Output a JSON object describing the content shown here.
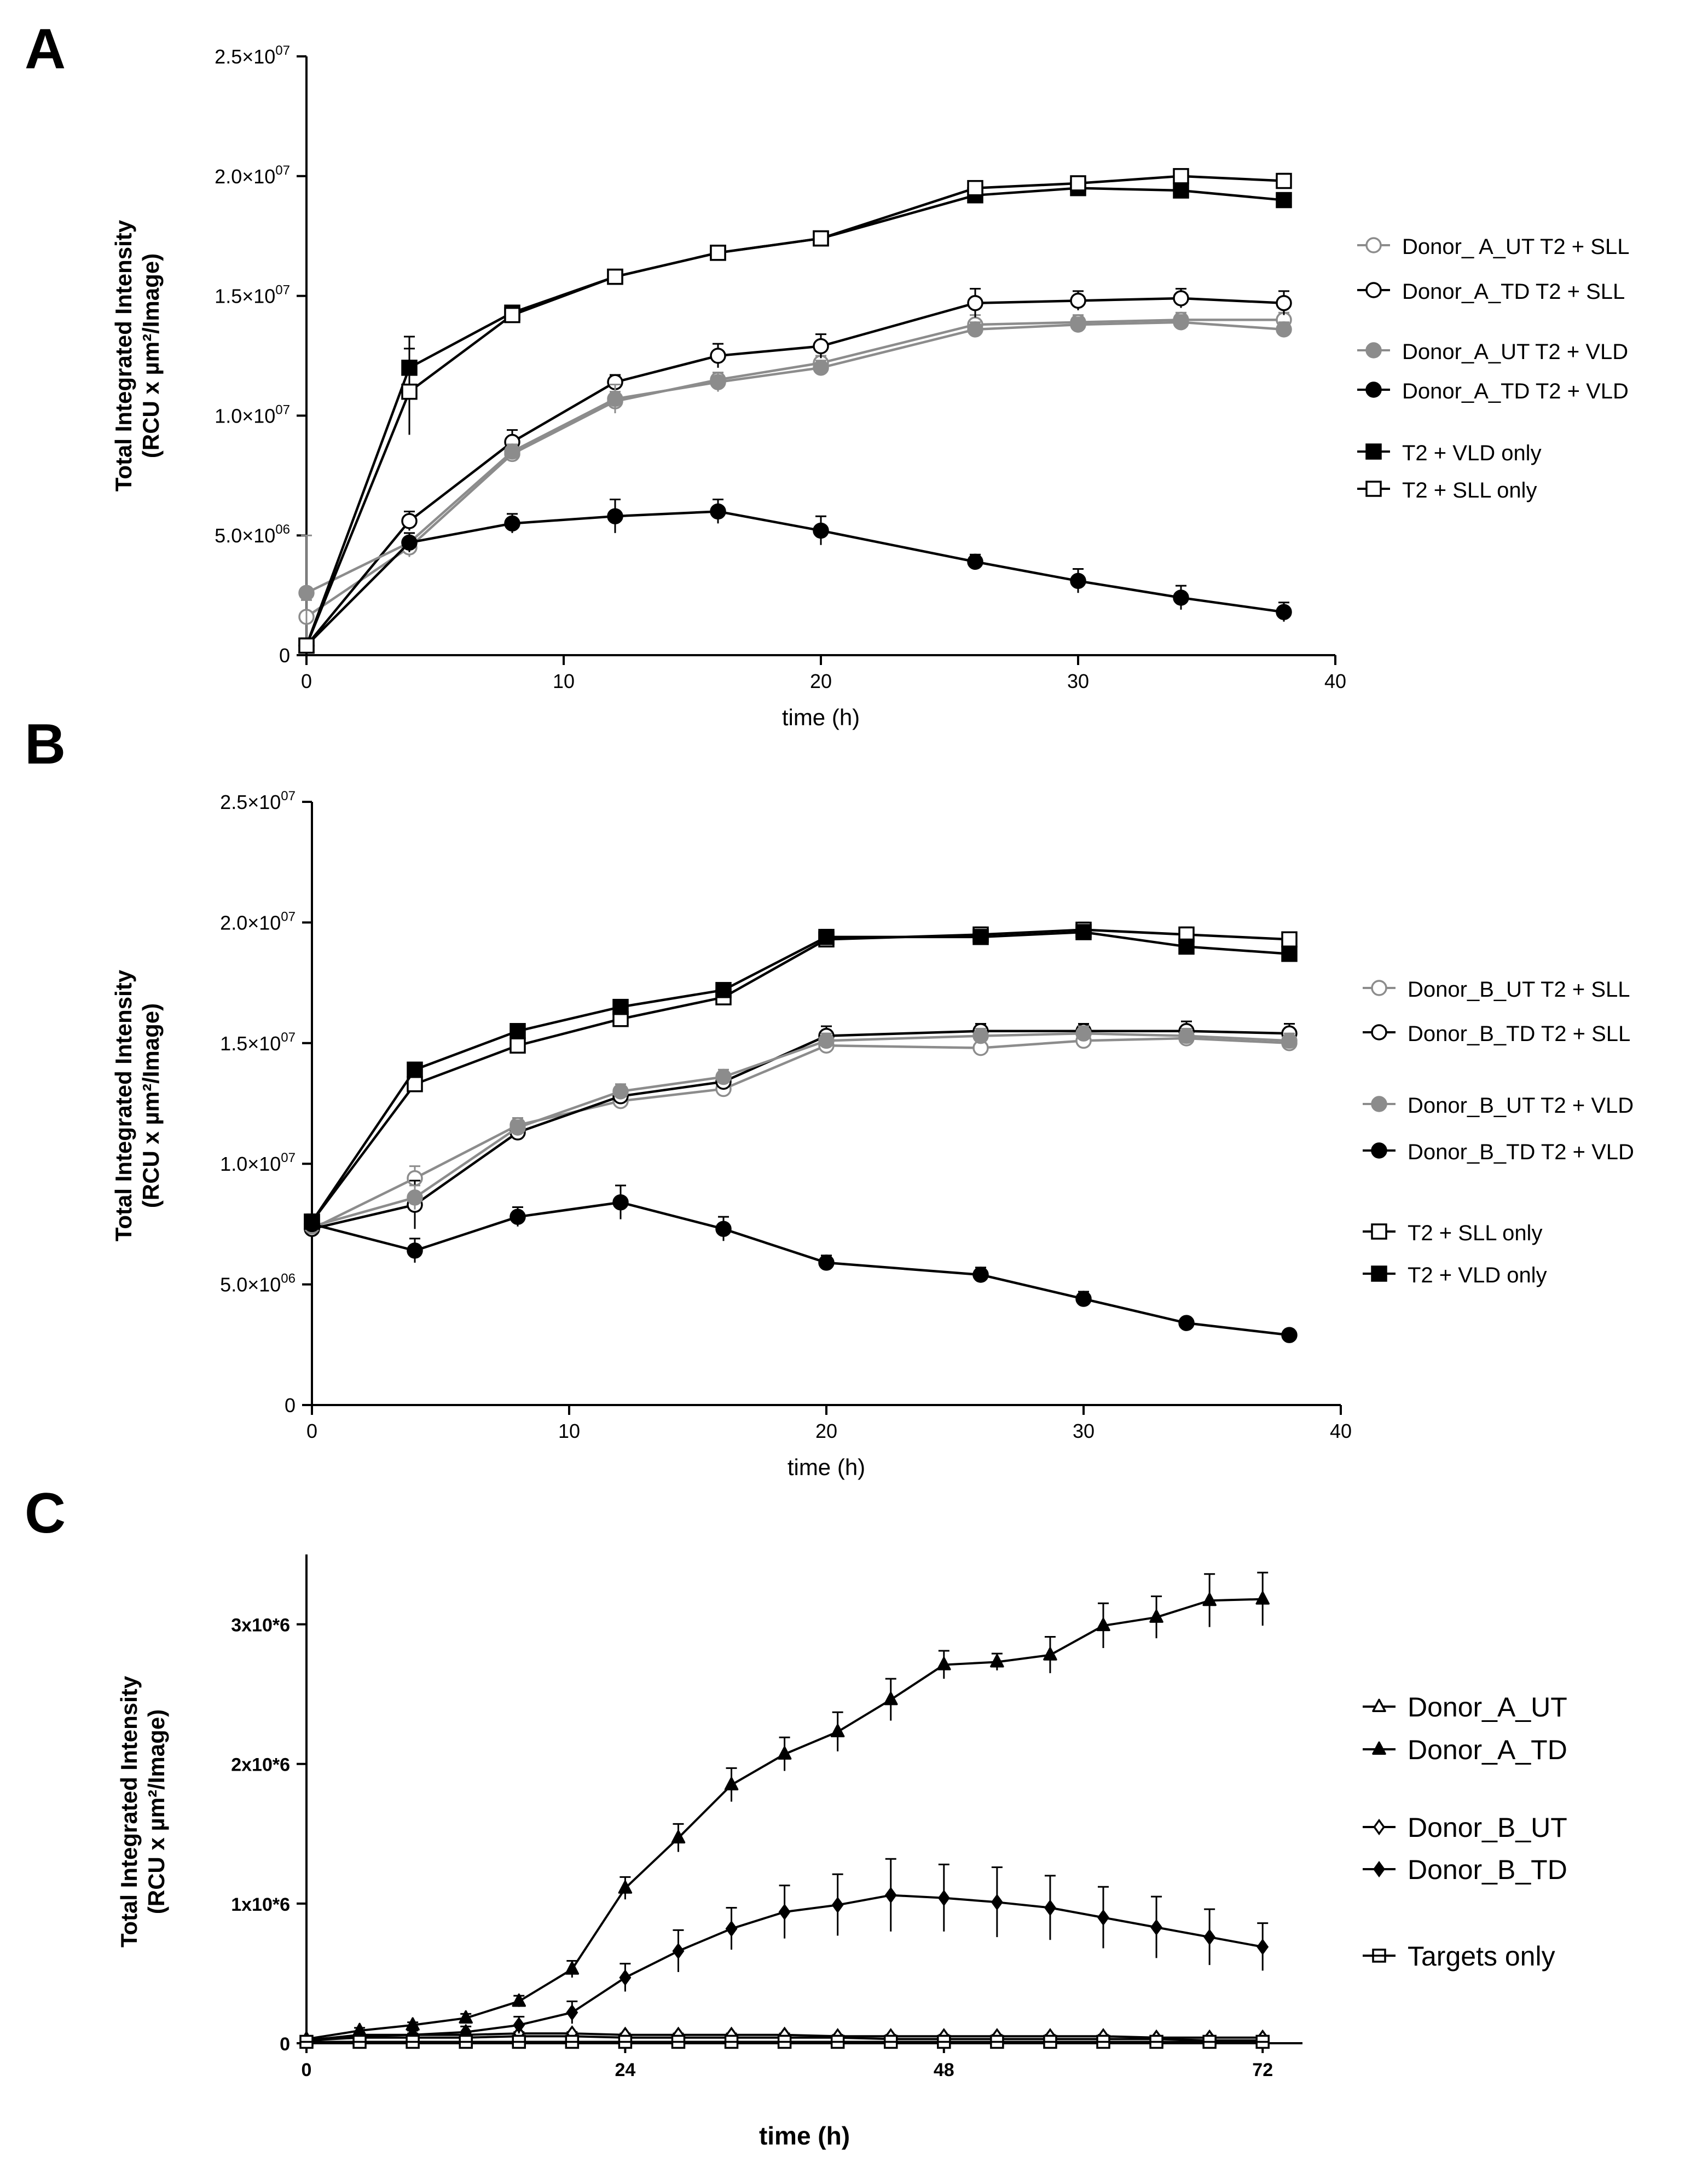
{
  "panels": [
    "A",
    "B",
    "C"
  ],
  "chart_data": [
    {
      "panel": "A",
      "type": "line",
      "xlabel": "time (h)",
      "ylabel_line1": "Total Integrated Intensity",
      "ylabel_line2": "(RCU x µm²/Image)",
      "xlim": [
        0,
        40
      ],
      "ylim": [
        0,
        25000000
      ],
      "xticks": [
        0,
        10,
        20,
        30,
        40
      ],
      "yticks": [
        0,
        5000000,
        10000000,
        15000000,
        20000000,
        25000000
      ],
      "ytick_labels": [
        {
          "mant": "0",
          "exp": ""
        },
        {
          "mant": "5.0×10",
          "exp": "06"
        },
        {
          "mant": "1.0×10",
          "exp": "07"
        },
        {
          "mant": "1.5×10",
          "exp": "07"
        },
        {
          "mant": "2.0×10",
          "exp": "07"
        },
        {
          "mant": "2.5×10",
          "exp": "07"
        }
      ],
      "grid": false,
      "legend_position": "right",
      "x": [
        0,
        4,
        8,
        12,
        16,
        20,
        26,
        30,
        34,
        38
      ],
      "series": [
        {
          "name": "Donor_ A_UT T2 + SLL",
          "marker": "circle",
          "fill": "open",
          "color": "#8c8c8c",
          "values": [
            1600000,
            4500000,
            8400000,
            10600000,
            11500000,
            12200000,
            13800000,
            13900000,
            14000000,
            14000000
          ],
          "errors": [
            700000,
            400000,
            300000,
            400000,
            300000,
            300000,
            400000,
            300000,
            300000,
            300000
          ]
        },
        {
          "name": "Donor_A_TD T2 + SLL",
          "marker": "circle",
          "fill": "open",
          "color": "#000000",
          "values": [
            400000,
            5600000,
            8900000,
            11400000,
            12500000,
            12900000,
            14700000,
            14800000,
            14900000,
            14700000
          ],
          "errors": [
            300000,
            400000,
            500000,
            300000,
            500000,
            500000,
            600000,
            400000,
            400000,
            500000
          ]
        },
        {
          "name": "Donor_A_UT T2 + VLD",
          "marker": "circle",
          "fill": "filled",
          "color": "#8c8c8c",
          "values": [
            2600000,
            4700000,
            8500000,
            10700000,
            11400000,
            12000000,
            13600000,
            13800000,
            13900000,
            13600000
          ],
          "errors": [
            2400000,
            400000,
            300000,
            600000,
            400000,
            300000,
            300000,
            300000,
            300000,
            300000
          ]
        },
        {
          "name": "Donor_A_TD T2 + VLD",
          "marker": "circle",
          "fill": "filled",
          "color": "#000000",
          "values": [
            400000,
            4700000,
            5500000,
            5800000,
            6000000,
            5200000,
            3900000,
            3100000,
            2400000,
            1800000
          ],
          "errors": [
            300000,
            400000,
            400000,
            700000,
            500000,
            600000,
            300000,
            500000,
            500000,
            400000
          ]
        },
        {
          "name": "T2 + VLD only",
          "marker": "square",
          "fill": "filled",
          "color": "#000000",
          "values": [
            400000,
            12000000,
            14300000,
            15800000,
            16800000,
            17400000,
            19200000,
            19500000,
            19400000,
            19000000
          ],
          "errors": [
            300000,
            1300000,
            200000,
            200000,
            200000,
            200000,
            200000,
            200000,
            200000,
            200000
          ]
        },
        {
          "name": "T2 + SLL only",
          "marker": "square",
          "fill": "open",
          "color": "#000000",
          "values": [
            400000,
            11000000,
            14200000,
            15800000,
            16800000,
            17400000,
            19500000,
            19700000,
            20000000,
            19800000
          ],
          "errors": [
            300000,
            1800000,
            300000,
            300000,
            300000,
            300000,
            300000,
            200000,
            200000,
            300000
          ]
        }
      ]
    },
    {
      "panel": "B",
      "type": "line",
      "xlabel": "time (h)",
      "ylabel_line1": "Total Integrated Intensity",
      "ylabel_line2": "(RCU x µm²/Image)",
      "xlim": [
        0,
        40
      ],
      "ylim": [
        0,
        25000000
      ],
      "xticks": [
        0,
        10,
        20,
        30,
        40
      ],
      "yticks": [
        0,
        5000000,
        10000000,
        15000000,
        20000000,
        25000000
      ],
      "ytick_labels": [
        {
          "mant": "0",
          "exp": ""
        },
        {
          "mant": "5.0×10",
          "exp": "06"
        },
        {
          "mant": "1.0×10",
          "exp": "07"
        },
        {
          "mant": "1.5×10",
          "exp": "07"
        },
        {
          "mant": "2.0×10",
          "exp": "07"
        },
        {
          "mant": "2.5×10",
          "exp": "07"
        }
      ],
      "grid": false,
      "legend_position": "right",
      "x": [
        0,
        4,
        8,
        12,
        16,
        20,
        26,
        30,
        34,
        38
      ],
      "series": [
        {
          "name": "Donor_B_UT T2 + SLL",
          "marker": "circle",
          "fill": "open",
          "color": "#8c8c8c",
          "values": [
            7300000,
            9400000,
            11600000,
            12600000,
            13100000,
            14900000,
            14800000,
            15100000,
            15200000,
            15000000
          ],
          "errors": [
            300000,
            500000,
            300000,
            300000,
            300000,
            300000,
            300000,
            300000,
            300000,
            300000
          ]
        },
        {
          "name": "Donor_B_TD T2 + SLL",
          "marker": "circle",
          "fill": "open",
          "color": "#000000",
          "values": [
            7300000,
            8300000,
            11300000,
            12800000,
            13400000,
            15300000,
            15500000,
            15500000,
            15500000,
            15400000
          ],
          "errors": [
            300000,
            1000000,
            300000,
            300000,
            300000,
            400000,
            300000,
            300000,
            400000,
            400000
          ]
        },
        {
          "name": "Donor_B_UT T2 + VLD",
          "marker": "circle",
          "fill": "filled",
          "color": "#8c8c8c",
          "values": [
            7400000,
            8600000,
            11500000,
            13000000,
            13600000,
            15100000,
            15300000,
            15400000,
            15300000,
            15100000
          ],
          "errors": [
            300000,
            500000,
            300000,
            300000,
            300000,
            300000,
            300000,
            300000,
            300000,
            300000
          ]
        },
        {
          "name": "Donor_B_TD T2 + VLD",
          "marker": "circle",
          "fill": "filled",
          "color": "#000000",
          "values": [
            7500000,
            6400000,
            7800000,
            8400000,
            7300000,
            5900000,
            5400000,
            4400000,
            3400000,
            2900000
          ],
          "errors": [
            300000,
            500000,
            400000,
            700000,
            500000,
            300000,
            300000,
            300000,
            200000,
            200000
          ]
        },
        {
          "name": "T2 + SLL only",
          "marker": "square",
          "fill": "open",
          "color": "#000000",
          "values": [
            7600000,
            13300000,
            14900000,
            16000000,
            16900000,
            19300000,
            19500000,
            19700000,
            19500000,
            19300000
          ],
          "errors": [
            300000,
            300000,
            300000,
            300000,
            300000,
            300000,
            300000,
            300000,
            300000,
            300000
          ]
        },
        {
          "name": "T2 + VLD only",
          "marker": "square",
          "fill": "filled",
          "color": "#000000",
          "values": [
            7600000,
            13900000,
            15500000,
            16500000,
            17200000,
            19400000,
            19400000,
            19600000,
            19000000,
            18700000
          ],
          "errors": [
            300000,
            300000,
            200000,
            200000,
            200000,
            300000,
            200000,
            200000,
            200000,
            200000
          ]
        }
      ]
    },
    {
      "panel": "C",
      "type": "line",
      "xlabel": "time (h)",
      "ylabel_line1": "Total Integrated Intensity",
      "ylabel_line2": "(RCU x µm²/Image)",
      "xlim": [
        0,
        75
      ],
      "ylim": [
        0,
        3500000
      ],
      "xticks": [
        0,
        24,
        48,
        72
      ],
      "yticks": [
        0,
        1000000,
        2000000,
        3000000
      ],
      "ytick_labels": [
        {
          "mant": "0",
          "exp": ""
        },
        {
          "mant": "1x10*6",
          "exp": ""
        },
        {
          "mant": "2x10*6",
          "exp": ""
        },
        {
          "mant": "3x10*6",
          "exp": ""
        }
      ],
      "grid": false,
      "legend_position": "right",
      "x": [
        0,
        4,
        8,
        12,
        16,
        20,
        24,
        28,
        32,
        36,
        40,
        44,
        48,
        52,
        56,
        60,
        64,
        68,
        72
      ],
      "series": [
        {
          "name": "Donor_A_UT",
          "marker": "triangle",
          "fill": "open",
          "color": "#000000",
          "values": [
            20000,
            40000,
            40000,
            40000,
            50000,
            50000,
            40000,
            40000,
            40000,
            40000,
            40000,
            30000,
            30000,
            30000,
            30000,
            30000,
            30000,
            20000,
            20000
          ],
          "errors": [
            10000,
            10000,
            10000,
            10000,
            10000,
            10000,
            10000,
            10000,
            10000,
            10000,
            10000,
            10000,
            10000,
            10000,
            10000,
            10000,
            10000,
            10000,
            10000
          ]
        },
        {
          "name": "Donor_A_TD",
          "marker": "triangle",
          "fill": "filled",
          "color": "#000000",
          "values": [
            30000,
            90000,
            130000,
            180000,
            300000,
            530000,
            1110000,
            1470000,
            1850000,
            2070000,
            2230000,
            2460000,
            2710000,
            2730000,
            2780000,
            2990000,
            3050000,
            3170000,
            3180000
          ],
          "errors": [
            20000,
            20000,
            20000,
            30000,
            40000,
            60000,
            80000,
            100000,
            120000,
            120000,
            140000,
            150000,
            100000,
            60000,
            130000,
            160000,
            150000,
            190000,
            190000
          ]
        },
        {
          "name": "Donor_B_UT",
          "marker": "diamond",
          "fill": "open",
          "color": "#000000",
          "values": [
            20000,
            60000,
            60000,
            60000,
            70000,
            70000,
            60000,
            60000,
            60000,
            60000,
            50000,
            50000,
            50000,
            50000,
            50000,
            50000,
            40000,
            40000,
            40000
          ],
          "errors": [
            10000,
            10000,
            10000,
            10000,
            10000,
            10000,
            10000,
            10000,
            10000,
            10000,
            10000,
            10000,
            10000,
            10000,
            10000,
            10000,
            10000,
            10000,
            10000
          ]
        },
        {
          "name": "Donor_B_TD",
          "marker": "diamond",
          "fill": "filled",
          "color": "#000000",
          "values": [
            20000,
            50000,
            60000,
            80000,
            130000,
            220000,
            470000,
            660000,
            820000,
            940000,
            990000,
            1060000,
            1040000,
            1010000,
            970000,
            900000,
            830000,
            760000,
            690000
          ],
          "errors": [
            10000,
            20000,
            30000,
            40000,
            60000,
            80000,
            100000,
            150000,
            150000,
            190000,
            220000,
            260000,
            240000,
            250000,
            230000,
            220000,
            220000,
            200000,
            170000
          ]
        },
        {
          "name": "Targets only",
          "marker": "square-line",
          "fill": "open",
          "color": "#000000",
          "values": [
            10000,
            10000,
            10000,
            10000,
            10000,
            10000,
            10000,
            10000,
            10000,
            10000,
            10000,
            10000,
            10000,
            10000,
            10000,
            10000,
            10000,
            10000,
            10000
          ],
          "errors": [
            0,
            0,
            0,
            0,
            0,
            0,
            0,
            0,
            0,
            0,
            0,
            0,
            0,
            0,
            0,
            0,
            0,
            0,
            0
          ]
        }
      ]
    }
  ]
}
